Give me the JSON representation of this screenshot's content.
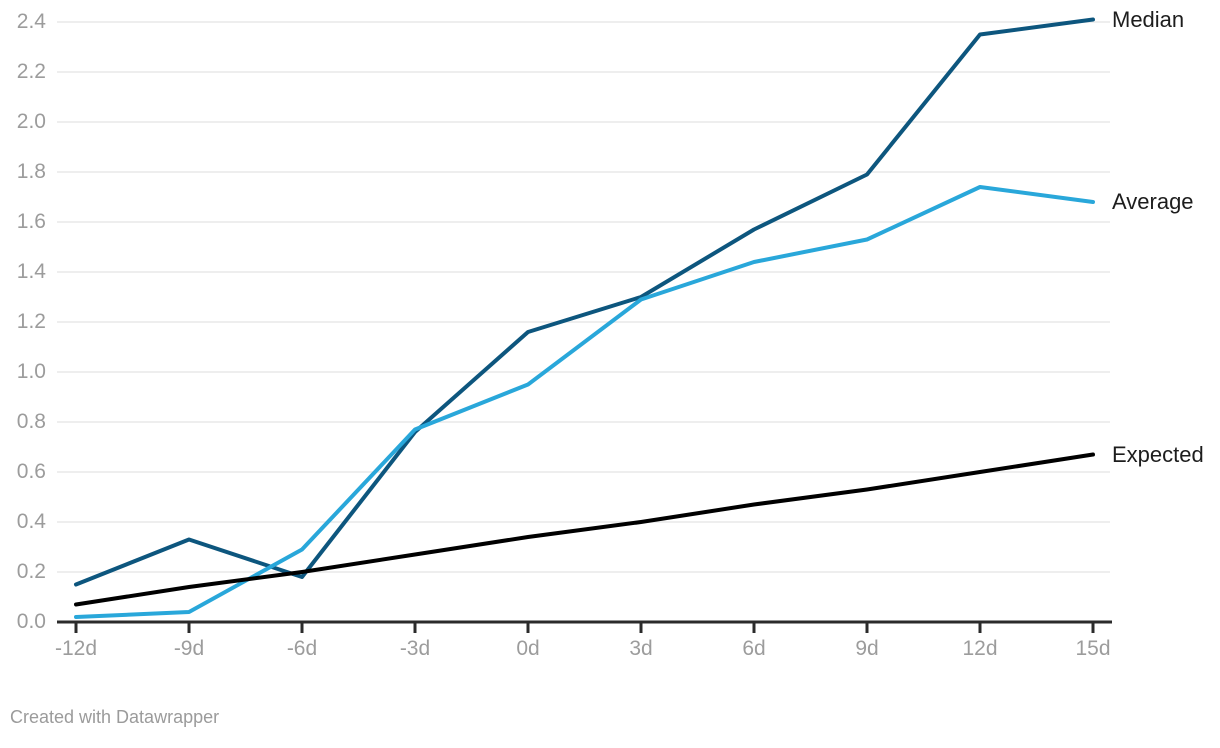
{
  "footer": {
    "text": "Created with Datawrapper"
  },
  "colors": {
    "axis": "#2b2b2b",
    "grid": "#e8e8e8",
    "tick_text": "#9c9c9c",
    "series_label_text": "#1d1d1d"
  },
  "chart_data": {
    "type": "line",
    "title": "",
    "xlabel": "",
    "ylabel": "",
    "categories": [
      "-12d",
      "-9d",
      "-6d",
      "-3d",
      "0d",
      "3d",
      "6d",
      "9d",
      "12d",
      "15d"
    ],
    "y_ticks": [
      "0.0",
      "0.2",
      "0.4",
      "0.6",
      "0.8",
      "1.0",
      "1.2",
      "1.4",
      "1.6",
      "1.8",
      "2.0",
      "2.2",
      "2.4"
    ],
    "ylim": [
      0,
      2.4
    ],
    "grid": "horizontal",
    "legend_position": "right-edge-direct-labels",
    "series": [
      {
        "name": "Median",
        "color": "#0d567e",
        "values": [
          0.15,
          0.33,
          0.18,
          0.76,
          1.16,
          1.3,
          1.57,
          1.79,
          2.35,
          2.41
        ]
      },
      {
        "name": "Average",
        "color": "#29a7da",
        "values": [
          0.02,
          0.04,
          0.29,
          0.77,
          0.95,
          1.29,
          1.44,
          1.53,
          1.74,
          1.68
        ]
      },
      {
        "name": "Expected",
        "color": "#000000",
        "values": [
          0.07,
          0.14,
          0.2,
          0.27,
          0.34,
          0.4,
          0.47,
          0.53,
          0.6,
          0.67
        ]
      }
    ]
  }
}
